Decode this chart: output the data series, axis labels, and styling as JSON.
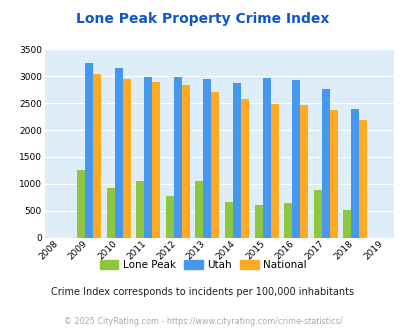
{
  "title": "Lone Peak Property Crime Index",
  "years": [
    2008,
    2009,
    2010,
    2011,
    2012,
    2013,
    2014,
    2015,
    2016,
    2017,
    2018,
    2019
  ],
  "lone_peak": [
    null,
    1260,
    930,
    1055,
    770,
    1045,
    670,
    600,
    635,
    880,
    505,
    null
  ],
  "utah": [
    null,
    3250,
    3160,
    2980,
    2995,
    2945,
    2870,
    2975,
    2940,
    2760,
    2400,
    null
  ],
  "national": [
    null,
    3035,
    2945,
    2900,
    2845,
    2710,
    2580,
    2495,
    2470,
    2365,
    2195,
    null
  ],
  "lone_peak_color": "#8dc63f",
  "utah_color": "#4499ee",
  "national_color": "#ffaa22",
  "bg_color": "#ddeef8",
  "ylim": [
    0,
    3500
  ],
  "yticks": [
    0,
    500,
    1000,
    1500,
    2000,
    2500,
    3000,
    3500
  ],
  "legend_labels": [
    "Lone Peak",
    "Utah",
    "National"
  ],
  "subtitle": "Crime Index corresponds to incidents per 100,000 inhabitants",
  "footer": "© 2025 CityRating.com - https://www.cityrating.com/crime-statistics/",
  "title_color": "#1155cc",
  "subtitle_color": "#222222",
  "footer_color": "#aaaaaa"
}
